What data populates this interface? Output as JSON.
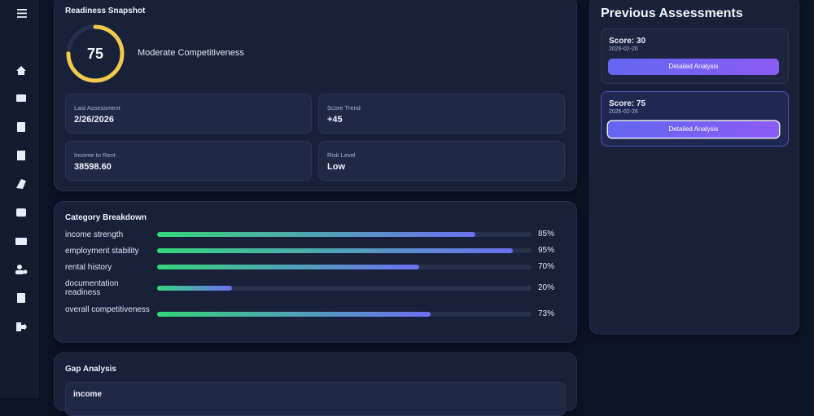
{
  "readiness": {
    "title": "Readiness Snapshot",
    "score": 75,
    "status": "Moderate Competitiveness",
    "stats": [
      {
        "label": "Last Assessment",
        "value": "2/26/2026"
      },
      {
        "label": "Score Trend",
        "value": "+45"
      },
      {
        "label": "Income to Rent",
        "value": "38598.60"
      },
      {
        "label": "Risk Level",
        "value": "Low"
      }
    ]
  },
  "category_breakdown": {
    "title": "Category Breakdown",
    "items": [
      {
        "name": "income strength",
        "value": 85,
        "label": "85%"
      },
      {
        "name": "employment stability",
        "value": 95,
        "label": "95%"
      },
      {
        "name": "rental history",
        "value": 70,
        "label": "70%"
      },
      {
        "name": "documentation readiness",
        "value": 20,
        "label": "20%"
      },
      {
        "name": "overall competitiveness",
        "value": 73,
        "label": "73%"
      }
    ]
  },
  "gap_analysis": {
    "title": "Gap Analysis",
    "items": [
      {
        "name": "income"
      }
    ]
  },
  "previous_assessments": {
    "title": "Previous Assessments",
    "items": [
      {
        "score": "Score: 30",
        "date": "2026-02-26",
        "button": "Detailed Analysis"
      },
      {
        "score": "Score: 75",
        "date": "2026-02-26",
        "button": "Detailed Analysis"
      }
    ]
  }
}
